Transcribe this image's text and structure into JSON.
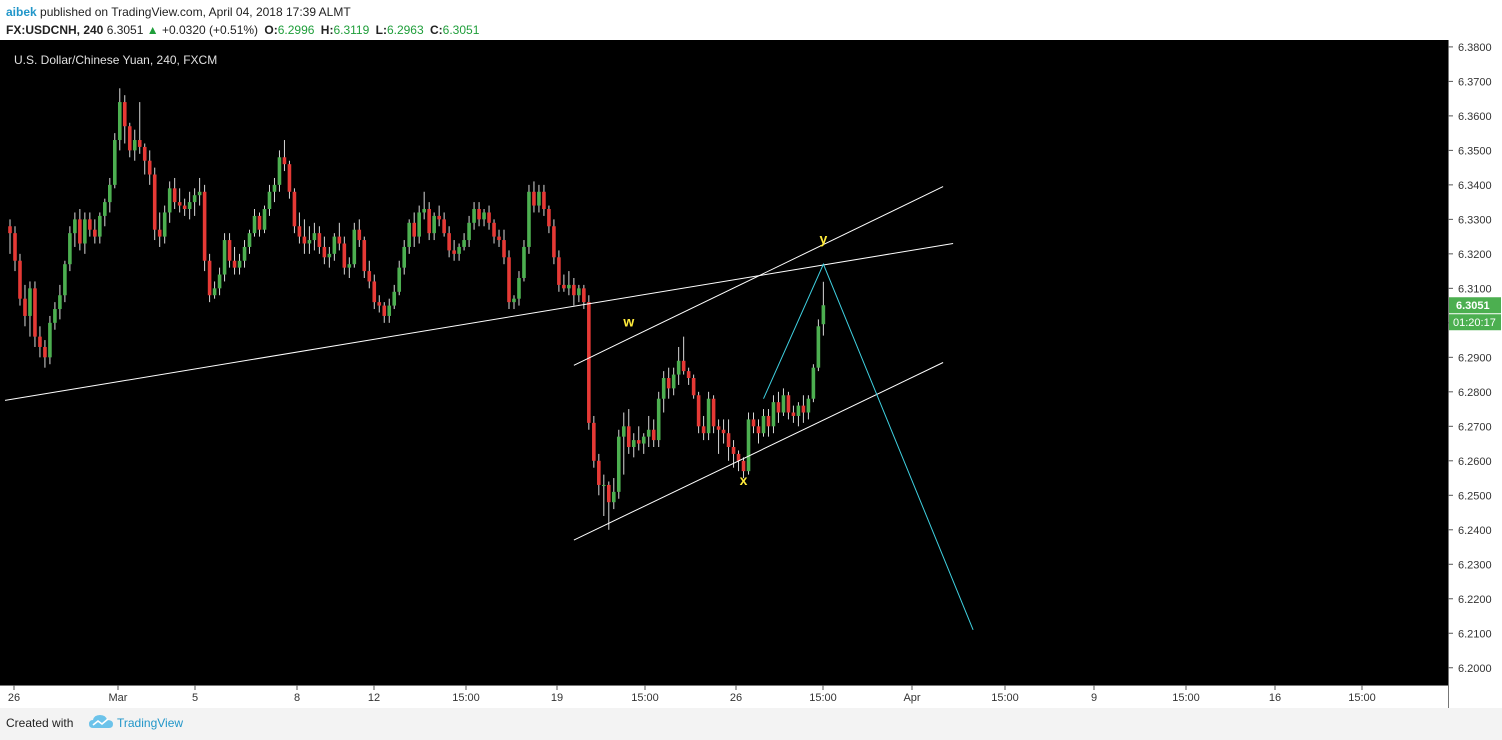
{
  "header": {
    "author": "aibek",
    "published_text": "published on TradingView.com, April 04, 2018 17:39 ALMT",
    "symbol": "FX:USDCNH, 240",
    "last_price": "6.3051",
    "change_arrow": "▲",
    "change": "+0.0320 (+0.51%)",
    "open_label": "O:",
    "open": "6.2996",
    "high_label": "H:",
    "high": "6.3119",
    "low_label": "L:",
    "low": "6.2963",
    "close_label": "C:",
    "close": "6.3051"
  },
  "footer": {
    "created_with": "Created with",
    "brand": "TradingView"
  },
  "colors": {
    "up_candle": "#4caf50",
    "down_candle": "#e53935",
    "background": "#000000",
    "trendline": "#ffffff",
    "projection": "#3fd0e0",
    "wave_label": "#ffeb3b",
    "price_tag": "#4caf50"
  },
  "chart_data": {
    "type": "candlestick",
    "title": "U.S. Dollar/Chinese Yuan, 240, FXCM",
    "ylim": [
      6.195,
      6.382
    ],
    "y_ticks": [
      6.38,
      6.37,
      6.36,
      6.35,
      6.34,
      6.33,
      6.32,
      6.31,
      6.3,
      6.29,
      6.28,
      6.27,
      6.26,
      6.25,
      6.24,
      6.23,
      6.22,
      6.21,
      6.2
    ],
    "x_ticks": [
      "26",
      "Mar",
      "5",
      "8",
      "12",
      "15:00",
      "19",
      "15:00",
      "26",
      "15:00",
      "Apr",
      "15:00",
      "9",
      "15:00",
      "16",
      "15:00"
    ],
    "last_price_label": "6.3051",
    "countdown_label": "01:20:17",
    "candles": [
      [
        6.328,
        6.33,
        6.32,
        6.326
      ],
      [
        6.326,
        6.328,
        6.315,
        6.318
      ],
      [
        6.318,
        6.32,
        6.305,
        6.307
      ],
      [
        6.307,
        6.311,
        6.299,
        6.302
      ],
      [
        6.302,
        6.312,
        6.296,
        6.31
      ],
      [
        6.31,
        6.312,
        6.293,
        6.296
      ],
      [
        6.296,
        6.299,
        6.29,
        6.293
      ],
      [
        6.293,
        6.295,
        6.287,
        6.29
      ],
      [
        6.29,
        6.302,
        6.288,
        6.3
      ],
      [
        6.3,
        6.306,
        6.298,
        6.304
      ],
      [
        6.304,
        6.311,
        6.301,
        6.308
      ],
      [
        6.308,
        6.318,
        6.306,
        6.317
      ],
      [
        6.317,
        6.328,
        6.315,
        6.326
      ],
      [
        6.326,
        6.332,
        6.322,
        6.33
      ],
      [
        6.33,
        6.333,
        6.321,
        6.323
      ],
      [
        6.323,
        6.332,
        6.32,
        6.33
      ],
      [
        6.33,
        6.332,
        6.325,
        6.327
      ],
      [
        6.327,
        6.33,
        6.323,
        6.325
      ],
      [
        6.325,
        6.332,
        6.323,
        6.331
      ],
      [
        6.331,
        6.336,
        6.328,
        6.335
      ],
      [
        6.335,
        6.342,
        6.332,
        6.34
      ],
      [
        6.34,
        6.355,
        6.339,
        6.353
      ],
      [
        6.353,
        6.368,
        6.35,
        6.364
      ],
      [
        6.364,
        6.366,
        6.352,
        6.357
      ],
      [
        6.357,
        6.358,
        6.348,
        6.35
      ],
      [
        6.35,
        6.356,
        6.347,
        6.353
      ],
      [
        6.353,
        6.364,
        6.349,
        6.351
      ],
      [
        6.351,
        6.352,
        6.343,
        6.347
      ],
      [
        6.347,
        6.35,
        6.34,
        6.343
      ],
      [
        6.343,
        6.345,
        6.324,
        6.327
      ],
      [
        6.327,
        6.332,
        6.322,
        6.325
      ],
      [
        6.325,
        6.334,
        6.323,
        6.332
      ],
      [
        6.332,
        6.341,
        6.329,
        6.339
      ],
      [
        6.339,
        6.342,
        6.333,
        6.335
      ],
      [
        6.335,
        6.339,
        6.332,
        6.334
      ],
      [
        6.334,
        6.336,
        6.331,
        6.333
      ],
      [
        6.333,
        6.338,
        6.33,
        6.335
      ],
      [
        6.335,
        6.339,
        6.331,
        6.337
      ],
      [
        6.337,
        6.342,
        6.334,
        6.338
      ],
      [
        6.338,
        6.34,
        6.315,
        6.318
      ],
      [
        6.318,
        6.32,
        6.306,
        6.308
      ],
      [
        6.308,
        6.312,
        6.307,
        6.31
      ],
      [
        6.31,
        6.316,
        6.308,
        6.314
      ],
      [
        6.314,
        6.326,
        6.312,
        6.324
      ],
      [
        6.324,
        6.326,
        6.316,
        6.318
      ],
      [
        6.318,
        6.322,
        6.314,
        6.316
      ],
      [
        6.316,
        6.32,
        6.314,
        6.318
      ],
      [
        6.318,
        6.324,
        6.316,
        6.322
      ],
      [
        6.322,
        6.327,
        6.32,
        6.326
      ],
      [
        6.326,
        6.333,
        6.325,
        6.331
      ],
      [
        6.331,
        6.332,
        6.325,
        6.327
      ],
      [
        6.327,
        6.334,
        6.326,
        6.333
      ],
      [
        6.333,
        6.34,
        6.331,
        6.338
      ],
      [
        6.338,
        6.342,
        6.335,
        6.34
      ],
      [
        6.34,
        6.35,
        6.338,
        6.348
      ],
      [
        6.348,
        6.353,
        6.344,
        6.346
      ],
      [
        6.346,
        6.347,
        6.336,
        6.338
      ],
      [
        6.338,
        6.339,
        6.326,
        6.328
      ],
      [
        6.328,
        6.332,
        6.323,
        6.325
      ],
      [
        6.325,
        6.33,
        6.32,
        6.323
      ],
      [
        6.323,
        6.328,
        6.32,
        6.324
      ],
      [
        6.324,
        6.329,
        6.321,
        6.326
      ],
      [
        6.326,
        6.328,
        6.32,
        6.322
      ],
      [
        6.322,
        6.325,
        6.317,
        6.319
      ],
      [
        6.319,
        6.322,
        6.316,
        6.32
      ],
      [
        6.32,
        6.326,
        6.318,
        6.325
      ],
      [
        6.325,
        6.329,
        6.321,
        6.323
      ],
      [
        6.323,
        6.325,
        6.314,
        6.316
      ],
      [
        6.316,
        6.319,
        6.313,
        6.317
      ],
      [
        6.317,
        6.329,
        6.316,
        6.327
      ],
      [
        6.327,
        6.33,
        6.322,
        6.324
      ],
      [
        6.324,
        6.325,
        6.313,
        6.315
      ],
      [
        6.315,
        6.318,
        6.31,
        6.312
      ],
      [
        6.312,
        6.314,
        6.304,
        6.306
      ],
      [
        6.306,
        6.308,
        6.303,
        6.305
      ],
      [
        6.305,
        6.306,
        6.3,
        6.302
      ],
      [
        6.302,
        6.307,
        6.3,
        6.305
      ],
      [
        6.305,
        6.311,
        6.304,
        6.309
      ],
      [
        6.309,
        6.318,
        6.308,
        6.316
      ],
      [
        6.316,
        6.324,
        6.314,
        6.322
      ],
      [
        6.322,
        6.33,
        6.32,
        6.329
      ],
      [
        6.329,
        6.332,
        6.322,
        6.325
      ],
      [
        6.325,
        6.334,
        6.323,
        6.332
      ],
      [
        6.332,
        6.338,
        6.33,
        6.333
      ],
      [
        6.333,
        6.335,
        6.324,
        6.326
      ],
      [
        6.326,
        6.332,
        6.324,
        6.331
      ],
      [
        6.331,
        6.334,
        6.328,
        6.33
      ],
      [
        6.33,
        6.332,
        6.325,
        6.326
      ],
      [
        6.326,
        6.328,
        6.319,
        6.321
      ],
      [
        6.321,
        6.324,
        6.318,
        6.32
      ],
      [
        6.32,
        6.323,
        6.318,
        6.322
      ],
      [
        6.322,
        6.326,
        6.321,
        6.324
      ],
      [
        6.324,
        6.331,
        6.322,
        6.329
      ],
      [
        6.329,
        6.335,
        6.327,
        6.333
      ],
      [
        6.333,
        6.335,
        6.328,
        6.33
      ],
      [
        6.33,
        6.333,
        6.328,
        6.332
      ],
      [
        6.332,
        6.334,
        6.327,
        6.329
      ],
      [
        6.329,
        6.33,
        6.323,
        6.325
      ],
      [
        6.325,
        6.327,
        6.322,
        6.324
      ],
      [
        6.324,
        6.327,
        6.317,
        6.319
      ],
      [
        6.319,
        6.321,
        6.304,
        6.306
      ],
      [
        6.306,
        6.308,
        6.304,
        6.307
      ],
      [
        6.307,
        6.315,
        6.305,
        6.313
      ],
      [
        6.313,
        6.324,
        6.312,
        6.322
      ],
      [
        6.322,
        6.34,
        6.32,
        6.338
      ],
      [
        6.338,
        6.341,
        6.332,
        6.334
      ],
      [
        6.334,
        6.34,
        6.332,
        6.338
      ],
      [
        6.338,
        6.34,
        6.331,
        6.333
      ],
      [
        6.333,
        6.334,
        6.326,
        6.328
      ],
      [
        6.328,
        6.33,
        6.317,
        6.319
      ],
      [
        6.319,
        6.321,
        6.309,
        6.311
      ],
      [
        6.311,
        6.314,
        6.309,
        6.31
      ],
      [
        6.31,
        6.315,
        6.308,
        6.311
      ],
      [
        6.311,
        6.313,
        6.305,
        6.308
      ],
      [
        6.308,
        6.311,
        6.306,
        6.31
      ],
      [
        6.31,
        6.311,
        6.304,
        6.306
      ],
      [
        6.306,
        6.308,
        6.269,
        6.271
      ],
      [
        6.271,
        6.273,
        6.258,
        6.26
      ],
      [
        6.26,
        6.262,
        6.25,
        6.253
      ],
      [
        6.253,
        6.256,
        6.244,
        6.253
      ],
      [
        6.253,
        6.254,
        6.24,
        6.248
      ],
      [
        6.248,
        6.255,
        6.246,
        6.251
      ],
      [
        6.251,
        6.269,
        6.249,
        6.267
      ],
      [
        6.267,
        6.274,
        6.256,
        6.27
      ],
      [
        6.27,
        6.275,
        6.262,
        6.264
      ],
      [
        6.264,
        6.268,
        6.261,
        6.266
      ],
      [
        6.266,
        6.27,
        6.263,
        6.265
      ],
      [
        6.265,
        6.268,
        6.262,
        6.267
      ],
      [
        6.267,
        6.273,
        6.264,
        6.269
      ],
      [
        6.269,
        6.272,
        6.264,
        6.266
      ],
      [
        6.266,
        6.28,
        6.264,
        6.278
      ],
      [
        6.278,
        6.286,
        6.274,
        6.284
      ],
      [
        6.284,
        6.287,
        6.278,
        6.281
      ],
      [
        6.281,
        6.287,
        6.279,
        6.285
      ],
      [
        6.285,
        6.293,
        6.282,
        6.289
      ],
      [
        6.289,
        6.296,
        6.285,
        6.286
      ],
      [
        6.286,
        6.287,
        6.282,
        6.284
      ],
      [
        6.284,
        6.285,
        6.278,
        6.279
      ],
      [
        6.279,
        6.28,
        6.268,
        6.27
      ],
      [
        6.27,
        6.273,
        6.266,
        6.268
      ],
      [
        6.268,
        6.28,
        6.266,
        6.278
      ],
      [
        6.278,
        6.279,
        6.268,
        6.27
      ],
      [
        6.27,
        6.272,
        6.262,
        6.269
      ],
      [
        6.269,
        6.272,
        6.265,
        6.268
      ],
      [
        6.268,
        6.272,
        6.26,
        6.264
      ],
      [
        6.264,
        6.266,
        6.258,
        6.262
      ],
      [
        6.262,
        6.263,
        6.257,
        6.26
      ],
      [
        6.26,
        6.261,
        6.255,
        6.257
      ],
      [
        6.257,
        6.274,
        6.256,
        6.272
      ],
      [
        6.272,
        6.274,
        6.268,
        6.27
      ],
      [
        6.27,
        6.272,
        6.265,
        6.268
      ],
      [
        6.268,
        6.275,
        6.267,
        6.273
      ],
      [
        6.273,
        6.275,
        6.267,
        6.27
      ],
      [
        6.27,
        6.279,
        6.268,
        6.277
      ],
      [
        6.277,
        6.28,
        6.271,
        6.274
      ],
      [
        6.274,
        6.281,
        6.273,
        6.279
      ],
      [
        6.279,
        6.28,
        6.272,
        6.274
      ],
      [
        6.274,
        6.276,
        6.271,
        6.273
      ],
      [
        6.273,
        6.277,
        6.27,
        6.276
      ],
      [
        6.276,
        6.279,
        6.271,
        6.274
      ],
      [
        6.274,
        6.279,
        6.272,
        6.278
      ],
      [
        6.278,
        6.288,
        6.277,
        6.287
      ],
      [
        6.287,
        6.301,
        6.286,
        6.299
      ],
      [
        6.2996,
        6.3119,
        6.2963,
        6.3051
      ]
    ],
    "annotations": [
      {
        "text": "w",
        "date_index": 124,
        "price": 6.299
      },
      {
        "text": "x",
        "date_index": 147,
        "price": 6.253
      },
      {
        "text": "y",
        "date_index": 163,
        "price": 6.323
      }
    ],
    "lines": [
      {
        "type": "trendline",
        "points": [
          [
            -1,
            6.2775
          ],
          [
            189,
            6.323
          ]
        ]
      },
      {
        "type": "channel-upper",
        "points": [
          [
            113,
            6.2877
          ],
          [
            187,
            6.3395
          ]
        ]
      },
      {
        "type": "channel-lower",
        "points": [
          [
            113,
            6.237
          ],
          [
            187,
            6.2885
          ]
        ]
      },
      {
        "type": "projection",
        "points": [
          [
            151,
            6.278
          ],
          [
            163,
            6.317
          ],
          [
            193,
            6.211
          ]
        ]
      }
    ]
  }
}
